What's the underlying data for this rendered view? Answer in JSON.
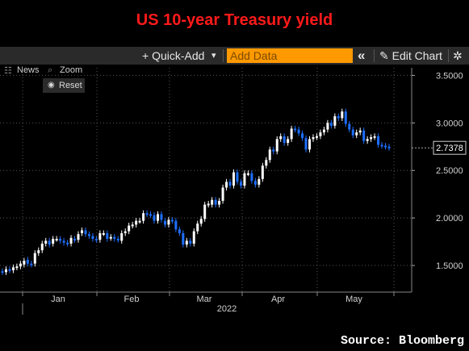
{
  "title": "US 10-year Treasury yield",
  "toolbar": {
    "quick_add_label": "+ Quick-Add",
    "dropdown_caret": "▾",
    "add_data_placeholder": "Add Data",
    "collapse_glyph": "«",
    "edit_chart_label": "Edit Chart",
    "settings_glyph": "✲"
  },
  "subbar": {
    "news_label": "News",
    "zoom_label": "Zoom",
    "reset_label": "Reset"
  },
  "source": "Source: Bloomberg",
  "colors": {
    "up": "#ffffff",
    "down": "#1e6fff",
    "grid": "#555555",
    "title": "#ff1a1a",
    "toolbar": "#2a2a2a",
    "accent": "#ff9900"
  },
  "chart_data": {
    "type": "candlestick",
    "title": "US 10-year Treasury yield",
    "ylim": [
      1.22,
      3.58
    ],
    "yticks": [
      1.5,
      2.0,
      2.5,
      3.0,
      3.5
    ],
    "ytick_labels": [
      "1.5000",
      "2.0000",
      "2.5000",
      "3.0000",
      "3.5000"
    ],
    "x_month_labels": [
      "Jan",
      "Feb",
      "Mar",
      "Apr",
      "May"
    ],
    "x_year_label": "2022",
    "last_value_label": "2.7378",
    "last_value": 2.7378,
    "close": [
      1.43,
      1.46,
      1.45,
      1.48,
      1.49,
      1.52,
      1.55,
      1.52,
      1.51,
      1.63,
      1.66,
      1.73,
      1.76,
      1.72,
      1.78,
      1.78,
      1.76,
      1.74,
      1.73,
      1.79,
      1.77,
      1.83,
      1.87,
      1.83,
      1.81,
      1.78,
      1.77,
      1.84,
      1.84,
      1.78,
      1.8,
      1.78,
      1.77,
      1.84,
      1.86,
      1.92,
      1.93,
      1.97,
      1.97,
      2.05,
      2.04,
      2.03,
      1.97,
      2.04,
      1.98,
      1.93,
      1.98,
      1.97,
      1.88,
      1.84,
      1.72,
      1.76,
      1.73,
      1.86,
      1.94,
      1.99,
      2.14,
      2.15,
      2.19,
      2.14,
      2.18,
      2.32,
      2.38,
      2.34,
      2.48,
      2.38,
      2.34,
      2.47,
      2.47,
      2.39,
      2.35,
      2.41,
      2.55,
      2.61,
      2.72,
      2.7,
      2.83,
      2.86,
      2.79,
      2.83,
      2.94,
      2.93,
      2.89,
      2.84,
      2.72,
      2.83,
      2.85,
      2.86,
      2.9,
      2.93,
      3.0,
      2.97,
      3.07,
      3.05,
      3.12,
      2.99,
      2.93,
      2.87,
      2.9,
      2.92,
      2.81,
      2.83,
      2.85,
      2.86,
      2.77,
      2.76,
      2.75,
      2.74
    ],
    "open": [
      1.44,
      1.43,
      1.46,
      1.45,
      1.48,
      1.49,
      1.51,
      1.56,
      1.52,
      1.52,
      1.63,
      1.66,
      1.73,
      1.76,
      1.73,
      1.78,
      1.78,
      1.76,
      1.74,
      1.73,
      1.78,
      1.77,
      1.84,
      1.87,
      1.83,
      1.81,
      1.78,
      1.77,
      1.84,
      1.84,
      1.79,
      1.8,
      1.78,
      1.76,
      1.84,
      1.86,
      1.92,
      1.93,
      1.97,
      1.97,
      2.05,
      2.04,
      2.03,
      1.97,
      2.04,
      1.97,
      1.93,
      1.98,
      1.97,
      1.88,
      1.84,
      1.72,
      1.76,
      1.73,
      1.86,
      1.94,
      1.99,
      2.14,
      2.14,
      2.19,
      2.14,
      2.18,
      2.32,
      2.38,
      2.34,
      2.48,
      2.38,
      2.34,
      2.47,
      2.47,
      2.39,
      2.35,
      2.41,
      2.55,
      2.61,
      2.72,
      2.7,
      2.83,
      2.86,
      2.79,
      2.83,
      2.94,
      2.93,
      2.89,
      2.84,
      2.72,
      2.83,
      2.85,
      2.86,
      2.9,
      2.93,
      3.0,
      2.97,
      3.07,
      3.05,
      3.12,
      2.99,
      2.93,
      2.87,
      2.9,
      2.92,
      2.81,
      2.83,
      2.85,
      2.86,
      2.77,
      2.76,
      2.75
    ]
  }
}
